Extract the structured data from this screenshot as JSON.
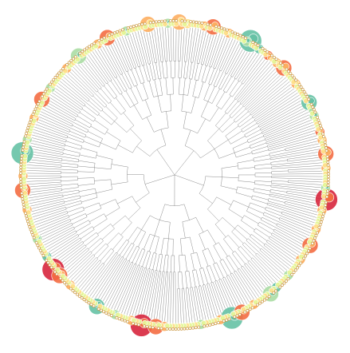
{
  "diagram": {
    "type": "radial-cluster-dendrogram",
    "node_color_scale": [
      "#d7263d",
      "#f46d43",
      "#fdae61",
      "#fee08b",
      "#e6f598",
      "#abdda4",
      "#66c2a5"
    ],
    "background_color": "#ffffff",
    "link_color": "#666666",
    "clusters": [
      {
        "id": "c1",
        "leaves": 34,
        "sizes": [
          3,
          1,
          1,
          2,
          1,
          1,
          1,
          1,
          1,
          2,
          1,
          1,
          3,
          1,
          1,
          1,
          1,
          1,
          2,
          1,
          1,
          1,
          1,
          1,
          1,
          2,
          4,
          1,
          1,
          1,
          2,
          1,
          1,
          1
        ],
        "colors": [
          2,
          3,
          4,
          3,
          3,
          4,
          3,
          4,
          3,
          2,
          4,
          3,
          1,
          3,
          4,
          3,
          4,
          3,
          2,
          4,
          3,
          4,
          3,
          4,
          4,
          5,
          6,
          4,
          3,
          4,
          6,
          4,
          4,
          3
        ]
      },
      {
        "id": "c2",
        "leaves": 36,
        "sizes": [
          2,
          1,
          1,
          1,
          2,
          1,
          1,
          3,
          1,
          1,
          1,
          1,
          1,
          1,
          2,
          1,
          1,
          1,
          1,
          1,
          1,
          1,
          3,
          1,
          1,
          1,
          1,
          2,
          1,
          1,
          1,
          1,
          1,
          2,
          1,
          1
        ],
        "colors": [
          1,
          2,
          3,
          4,
          2,
          3,
          4,
          1,
          3,
          4,
          3,
          4,
          4,
          3,
          2,
          4,
          3,
          4,
          3,
          4,
          4,
          3,
          6,
          4,
          4,
          5,
          4,
          5,
          4,
          4,
          3,
          4,
          3,
          1,
          4,
          3
        ]
      },
      {
        "id": "c3",
        "leaves": 30,
        "sizes": [
          2,
          1,
          1,
          1,
          1,
          3,
          1,
          1,
          1,
          1,
          2,
          1,
          1,
          1,
          1,
          1,
          1,
          2,
          1,
          1,
          1,
          4,
          1,
          1,
          1,
          2,
          1,
          1,
          1,
          1
        ],
        "colors": [
          2,
          4,
          3,
          4,
          3,
          1,
          3,
          4,
          4,
          3,
          2,
          4,
          3,
          4,
          4,
          3,
          4,
          5,
          4,
          4,
          3,
          0,
          4,
          4,
          3,
          2,
          4,
          3,
          4,
          4
        ]
      },
      {
        "id": "c4",
        "leaves": 34,
        "sizes": [
          1,
          1,
          2,
          1,
          1,
          1,
          1,
          1,
          3,
          1,
          1,
          1,
          1,
          1,
          2,
          1,
          1,
          1,
          1,
          1,
          1,
          2,
          1,
          1,
          1,
          1,
          1,
          2,
          1,
          1,
          3,
          1,
          1,
          1
        ],
        "colors": [
          4,
          3,
          2,
          4,
          3,
          4,
          3,
          4,
          1,
          3,
          4,
          4,
          3,
          4,
          2,
          4,
          3,
          4,
          4,
          3,
          4,
          5,
          4,
          4,
          3,
          4,
          4,
          6,
          4,
          3,
          5,
          4,
          3,
          4
        ]
      },
      {
        "id": "c5",
        "leaves": 32,
        "sizes": [
          1,
          1,
          1,
          2,
          1,
          1,
          1,
          1,
          3,
          1,
          1,
          1,
          4,
          1,
          1,
          1,
          2,
          1,
          1,
          1,
          1,
          1,
          1,
          2,
          1,
          1,
          1,
          1,
          1,
          1,
          1,
          1
        ],
        "colors": [
          4,
          3,
          4,
          2,
          3,
          4,
          4,
          3,
          1,
          4,
          3,
          4,
          6,
          4,
          3,
          4,
          2,
          4,
          3,
          4,
          4,
          3,
          4,
          5,
          4,
          3,
          4,
          4,
          3,
          4,
          4,
          3
        ]
      },
      {
        "id": "c6",
        "leaves": 36,
        "sizes": [
          1,
          1,
          1,
          1,
          2,
          1,
          1,
          3,
          1,
          1,
          1,
          1,
          4,
          1,
          1,
          1,
          2,
          1,
          1,
          1,
          1,
          1,
          2,
          1,
          1,
          1,
          1,
          1,
          1,
          3,
          1,
          1,
          1,
          1,
          1,
          1
        ],
        "colors": [
          4,
          3,
          4,
          4,
          2,
          3,
          4,
          1,
          4,
          3,
          4,
          4,
          0,
          4,
          3,
          4,
          2,
          3,
          4,
          4,
          3,
          4,
          5,
          4,
          4,
          3,
          4,
          4,
          3,
          6,
          4,
          3,
          4,
          4,
          3,
          4
        ]
      },
      {
        "id": "c7",
        "leaves": 32,
        "sizes": [
          1,
          1,
          1,
          1,
          1,
          2,
          1,
          1,
          1,
          1,
          3,
          1,
          1,
          4,
          1,
          1,
          1,
          1,
          2,
          1,
          1,
          1,
          1,
          1,
          1,
          2,
          1,
          1,
          1,
          1,
          1,
          1
        ],
        "colors": [
          4,
          3,
          4,
          4,
          3,
          2,
          4,
          3,
          4,
          4,
          1,
          3,
          4,
          0,
          4,
          3,
          4,
          4,
          6,
          4,
          3,
          4,
          4,
          3,
          4,
          5,
          4,
          3,
          4,
          4,
          3,
          4
        ]
      },
      {
        "id": "c8",
        "leaves": 34,
        "sizes": [
          1,
          1,
          1,
          1,
          2,
          1,
          1,
          1,
          1,
          1,
          1,
          3,
          1,
          1,
          1,
          1,
          2,
          1,
          1,
          1,
          1,
          1,
          1,
          1,
          4,
          1,
          1,
          1,
          1,
          2,
          1,
          1,
          1,
          1
        ],
        "colors": [
          4,
          3,
          4,
          3,
          2,
          4,
          4,
          3,
          4,
          4,
          3,
          1,
          4,
          3,
          4,
          4,
          2,
          4,
          3,
          4,
          4,
          3,
          4,
          4,
          6,
          4,
          3,
          4,
          4,
          5,
          4,
          3,
          4,
          4
        ]
      },
      {
        "id": "c9",
        "leaves": 34,
        "sizes": [
          1,
          1,
          1,
          2,
          1,
          1,
          1,
          1,
          1,
          1,
          3,
          1,
          1,
          1,
          1,
          2,
          1,
          1,
          1,
          1,
          1,
          1,
          1,
          1,
          2,
          1,
          1,
          1,
          1,
          1,
          3,
          1,
          1,
          1
        ],
        "colors": [
          4,
          3,
          4,
          2,
          3,
          4,
          4,
          3,
          4,
          4,
          1,
          4,
          3,
          4,
          4,
          5,
          4,
          3,
          4,
          4,
          3,
          4,
          4,
          3,
          2,
          4,
          4,
          3,
          4,
          4,
          5,
          4,
          3,
          4
        ]
      },
      {
        "id": "c10",
        "leaves": 34,
        "sizes": [
          1,
          1,
          1,
          1,
          2,
          1,
          1,
          1,
          3,
          1,
          1,
          1,
          1,
          1,
          1,
          2,
          1,
          1,
          1,
          1,
          1,
          1,
          1,
          3,
          1,
          1,
          1,
          1,
          1,
          1,
          2,
          1,
          1,
          1
        ],
        "colors": [
          4,
          3,
          4,
          4,
          2,
          3,
          4,
          4,
          1,
          4,
          3,
          4,
          4,
          3,
          4,
          5,
          4,
          4,
          3,
          4,
          4,
          3,
          4,
          2,
          4,
          4,
          3,
          4,
          4,
          3,
          5,
          4,
          4,
          3
        ]
      }
    ]
  }
}
